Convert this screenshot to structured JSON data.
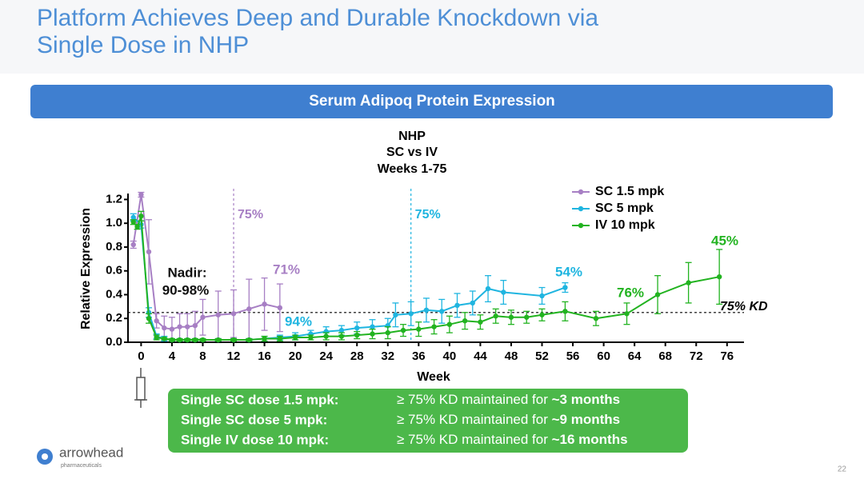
{
  "slide": {
    "title_lines": [
      "Platform Achieves Deep and Durable Knockdown via",
      "Single Dose in NHP"
    ],
    "banner": "Serum Adipoq Protein Expression",
    "summary": [
      [
        "Single SC dose 1.5 mpk:",
        "≥ 75% KD maintained for ",
        "~3 months"
      ],
      [
        "Single SC dose 5 mpk:",
        "≥ 75% KD maintained for ",
        "~9 months"
      ],
      [
        "Single IV dose 10 mpk:",
        "≥ 75% KD maintained for ",
        "~16 months"
      ]
    ],
    "logo": "arrowhead",
    "logo_sub": "pharmaceuticals",
    "page": "22"
  },
  "chart_data": {
    "type": "line",
    "title_lines": [
      "NHP",
      "SC vs IV",
      "Weeks 1-75"
    ],
    "x_label": "Week",
    "y_label": "Relative Expression",
    "xlim": [
      -1.7,
      78.2
    ],
    "ylim": [
      0,
      1.25
    ],
    "xticks": [
      0,
      4,
      8,
      12,
      16,
      20,
      24,
      28,
      32,
      36,
      40,
      44,
      48,
      52,
      56,
      60,
      64,
      68,
      72,
      76
    ],
    "yticks": [
      {
        "value": 0,
        "label": "0.0"
      },
      {
        "value": 0.2,
        "label": "0.2"
      },
      {
        "value": 0.4,
        "label": "0.4"
      },
      {
        "value": 0.6,
        "label": "0.6"
      },
      {
        "value": 0.8,
        "label": "0.8"
      },
      {
        "value": 1,
        "label": "1.0"
      },
      {
        "value": 1.2,
        "label": "1.2"
      }
    ],
    "legend": "top-right",
    "series": [
      {
        "name": "SC 1.5 mpk",
        "color": "#a77fc4",
        "x": [
          -1,
          0,
          1,
          2,
          3,
          4,
          5,
          6,
          7,
          8,
          10,
          12,
          14,
          16,
          18
        ],
        "values": [
          0.82,
          1.24,
          0.76,
          0.18,
          0.12,
          0.11,
          0.13,
          0.13,
          0.14,
          0.21,
          0.23,
          0.24,
          0.28,
          0.32,
          0.29
        ],
        "errors": [
          0.03,
          0.02,
          0.27,
          0.06,
          0.1,
          0.1,
          0.11,
          0.11,
          0.12,
          0.15,
          0.2,
          0.2,
          0.25,
          0.22,
          0.2
        ]
      },
      {
        "name": "SC 5 mpk",
        "color": "#1fb5e0",
        "x": [
          -1,
          0,
          1,
          2,
          3,
          4,
          5,
          6,
          7,
          8,
          10,
          12,
          14,
          16,
          18,
          20,
          22,
          24,
          26,
          28,
          30,
          32,
          33,
          35,
          37,
          39,
          41,
          43,
          45,
          47,
          52,
          55
        ],
        "values": [
          1.05,
          0.99,
          0.25,
          0.05,
          0.03,
          0.02,
          0.02,
          0.02,
          0.02,
          0.02,
          0.02,
          0.02,
          0.02,
          0.03,
          0.04,
          0.05,
          0.07,
          0.09,
          0.1,
          0.12,
          0.13,
          0.14,
          0.23,
          0.24,
          0.27,
          0.26,
          0.31,
          0.33,
          0.45,
          0.42,
          0.39,
          0.46
        ],
        "errors": [
          0.03,
          0.03,
          0.04,
          0.02,
          0.02,
          0.01,
          0.01,
          0.01,
          0.01,
          0.01,
          0.01,
          0.01,
          0.01,
          0.02,
          0.02,
          0.03,
          0.03,
          0.04,
          0.04,
          0.05,
          0.06,
          0.06,
          0.1,
          0.1,
          0.1,
          0.1,
          0.1,
          0.1,
          0.11,
          0.1,
          0.07,
          0.04
        ]
      },
      {
        "name": "IV 10 mpk",
        "color": "#22b320",
        "x": [
          -1,
          -0.5,
          0,
          1,
          2,
          3,
          4,
          5,
          6,
          7,
          8,
          10,
          12,
          14,
          16,
          18,
          20,
          22,
          24,
          26,
          28,
          30,
          32,
          34,
          36,
          38,
          40,
          42,
          44,
          46,
          48,
          50,
          52,
          55,
          59,
          63,
          67,
          71,
          75
        ],
        "values": [
          1.01,
          0.97,
          1.06,
          0.2,
          0.04,
          0.03,
          0.02,
          0.02,
          0.02,
          0.02,
          0.02,
          0.02,
          0.02,
          0.02,
          0.03,
          0.03,
          0.04,
          0.04,
          0.05,
          0.05,
          0.06,
          0.07,
          0.08,
          0.1,
          0.11,
          0.13,
          0.15,
          0.18,
          0.17,
          0.22,
          0.21,
          0.21,
          0.23,
          0.26,
          0.2,
          0.24,
          0.4,
          0.5,
          0.55
        ],
        "errors": [
          0.02,
          0.02,
          0.04,
          0.04,
          0.02,
          0.01,
          0.01,
          0.01,
          0.01,
          0.01,
          0.01,
          0.01,
          0.01,
          0.01,
          0.02,
          0.02,
          0.02,
          0.02,
          0.03,
          0.03,
          0.03,
          0.04,
          0.05,
          0.05,
          0.06,
          0.06,
          0.07,
          0.07,
          0.06,
          0.06,
          0.06,
          0.05,
          0.05,
          0.08,
          0.06,
          0.09,
          0.16,
          0.17,
          0.23
        ]
      }
    ],
    "reference_x": [
      {
        "x": 12,
        "label": "75%",
        "color": "#a77fc4"
      },
      {
        "x": 35,
        "label": "75%",
        "color": "#1fb5e0"
      }
    ],
    "reference_y": {
      "y": 0.25,
      "label": "75% KD"
    },
    "annotations": [
      {
        "text": "Nadir:",
        "color": "#111"
      },
      {
        "text": "90-98%",
        "color": "#111"
      },
      {
        "text": "71%",
        "color": "#a77fc4"
      },
      {
        "text": "94%",
        "color": "#1fb5e0"
      },
      {
        "text": "54%",
        "color": "#1fb5e0"
      },
      {
        "text": "76%",
        "color": "#22b320"
      },
      {
        "text": "45%",
        "color": "#22b320"
      }
    ]
  }
}
